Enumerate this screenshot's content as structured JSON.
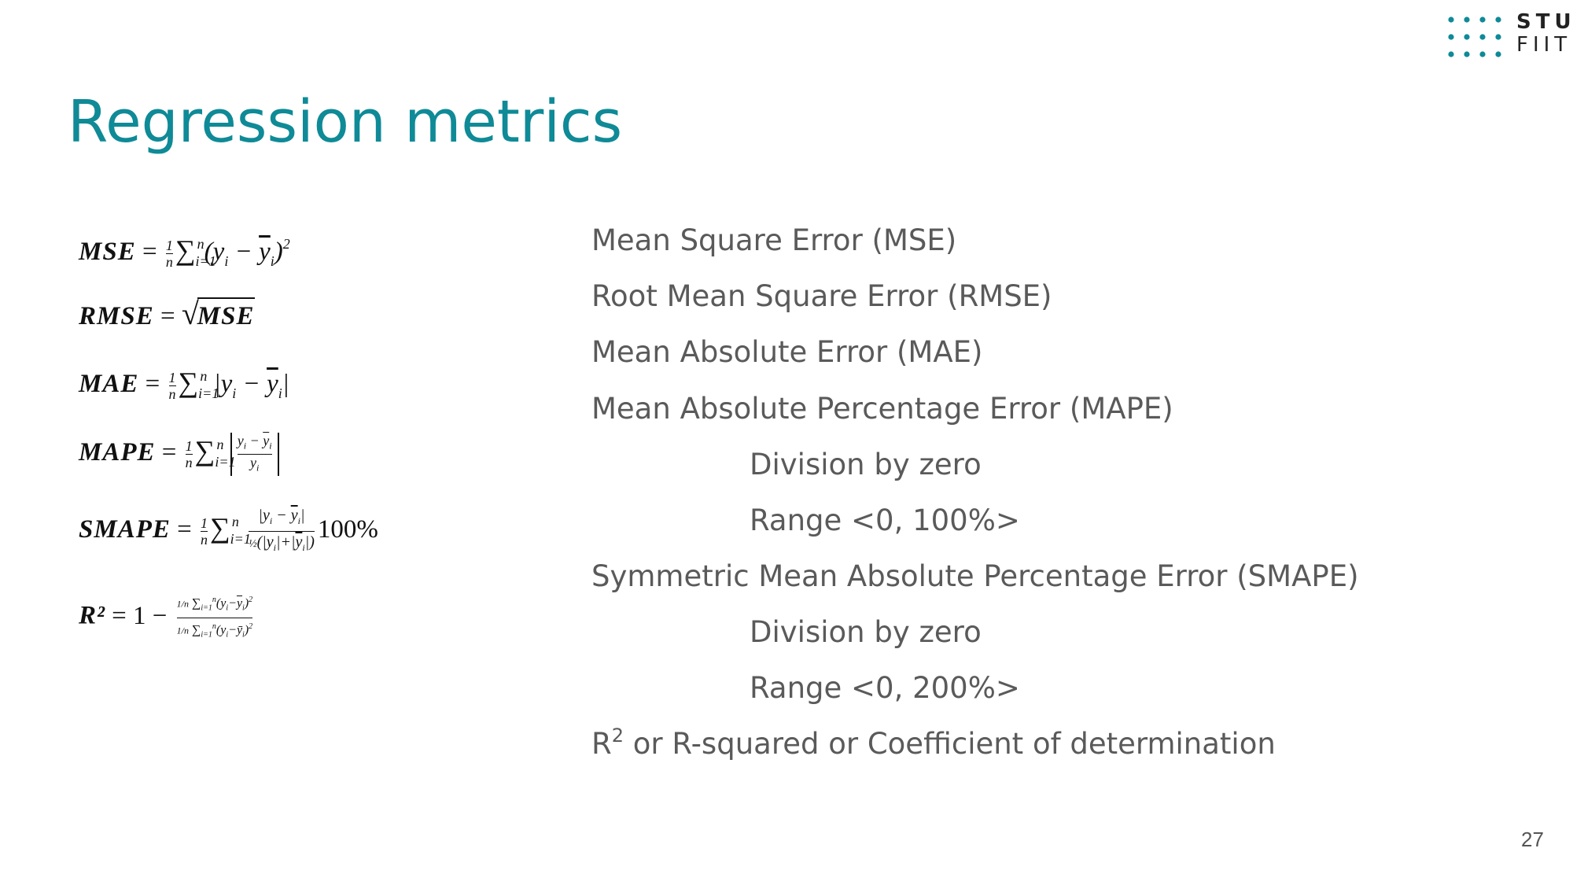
{
  "logo": {
    "line1": "STU",
    "line2": "FIIT",
    "dot_color": "#0f8a97"
  },
  "slide": {
    "title": "Regression metrics",
    "page_number": "27",
    "accent_color": "#0f8a97"
  },
  "formulas": {
    "mse": {
      "lhs": "MSE",
      "rhs": "= (1/n) Σ_{i=1}^{n} (y_i − ŷ_i)²"
    },
    "rmse": {
      "lhs": "RMSE",
      "rhs": "= √MSE"
    },
    "mae": {
      "lhs": "MAE",
      "rhs": "= (1/n) Σ_{i=1}^{n} |y_i − ŷ_i|"
    },
    "mape": {
      "lhs": "MAPE",
      "rhs": "= (1/n) Σ_{i=1}^{n} |(y_i − ŷ_i) / y_i|"
    },
    "smape": {
      "lhs": "SMAPE",
      "rhs": "= (1/n) Σ_{i=1}^{n} |y_i − ŷ_i| / ((1/2)(|y_i| + |ŷ_i|)) 100%"
    },
    "r2": {
      "lhs": "R²",
      "rhs": "= 1 − [(1/n) Σ_{i=1}^{n} (y_i − ŷ_i)²] / [(1/n) Σ_{i=1}^{n} (y_i − ȳ_i)²]"
    }
  },
  "descriptions": {
    "mse": "Mean Square Error (MSE)",
    "rmse": "Root Mean Square Error (RMSE)",
    "mae": "Mean Absolute Error (MAE)",
    "mape": "Mean Absolute Percentage Error (MAPE)",
    "mape_note1": "Division by zero",
    "mape_note2": "Range <0, 100%>",
    "smape": "Symmetric Mean Absolute Percentage Error (SMAPE)",
    "smape_note1": "Division by zero",
    "smape_note2": "Range <0, 200%>",
    "r2_prefix": "R",
    "r2_sup": "2",
    "r2_rest": " or R-squared or Coefficient of determination"
  }
}
